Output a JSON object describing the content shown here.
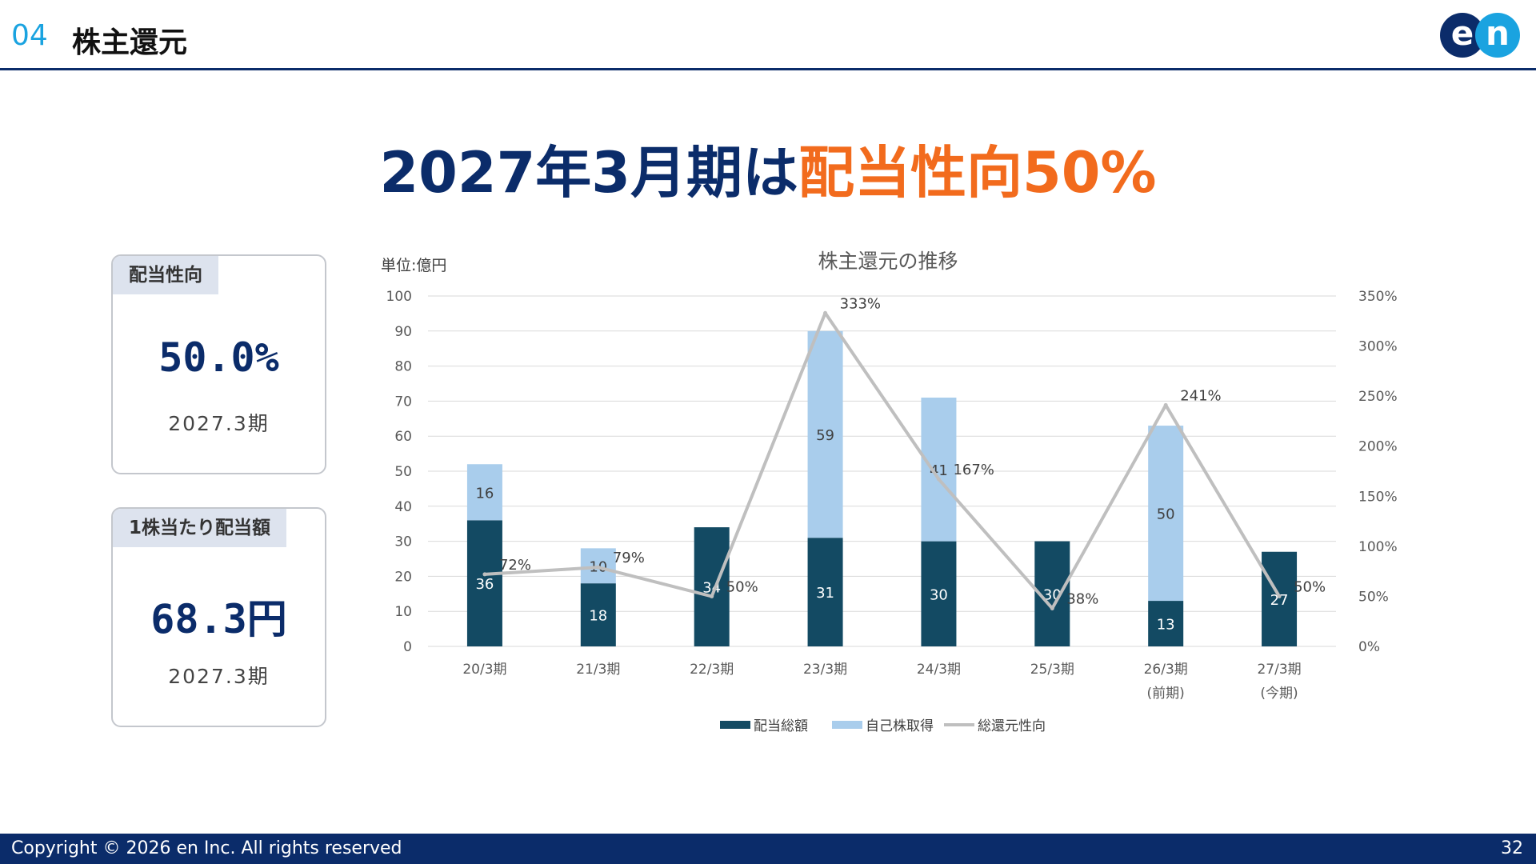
{
  "header": {
    "section_number": "04",
    "section_title": "株主還元",
    "logo_left": "e",
    "logo_right": "n"
  },
  "headline": {
    "main": "2027年3月期は",
    "accent": "配当性向50%"
  },
  "kpis": [
    {
      "label": "配当性向",
      "value": "50.0%",
      "period": "2027.3期"
    },
    {
      "label": "1株当たり配当額",
      "value": "68.3円",
      "period": "2027.3期"
    }
  ],
  "chart_data": {
    "type": "bar",
    "title": "株主還元の推移",
    "unit_label": "単位:億円",
    "categories": [
      [
        "20/3期"
      ],
      [
        "21/3期"
      ],
      [
        "22/3期"
      ],
      [
        "23/3期"
      ],
      [
        "24/3期"
      ],
      [
        "25/3期"
      ],
      [
        "26/3期",
        "(前期)"
      ],
      [
        "27/3期",
        "(今期)"
      ]
    ],
    "left_axis": {
      "min": 0,
      "max": 100,
      "step": 10
    },
    "right_axis": {
      "min": 0,
      "max": 350,
      "step": 50,
      "suffix": "%"
    },
    "grid": true,
    "legend_position": "bottom",
    "series": [
      {
        "name": "配当総額",
        "kind": "bar",
        "color": "#134a63",
        "values": [
          36,
          18,
          34,
          31,
          30,
          30,
          13,
          27
        ]
      },
      {
        "name": "自己株取得",
        "kind": "bar",
        "color": "#a9cdec",
        "values": [
          16,
          10,
          0,
          59,
          41,
          0,
          50,
          0
        ]
      },
      {
        "name": "総還元性向",
        "kind": "line",
        "axis": "right",
        "color": "#bfbfbf",
        "values": [
          72,
          79,
          50,
          333,
          167,
          38,
          241,
          50
        ],
        "labels": [
          "72%",
          "79%",
          "50%",
          "333%",
          "167%",
          "38%",
          "241%",
          "50%"
        ]
      }
    ]
  },
  "footer": {
    "copyright": "Copyright © 2026 en Inc. All rights reserved",
    "page": "32"
  }
}
